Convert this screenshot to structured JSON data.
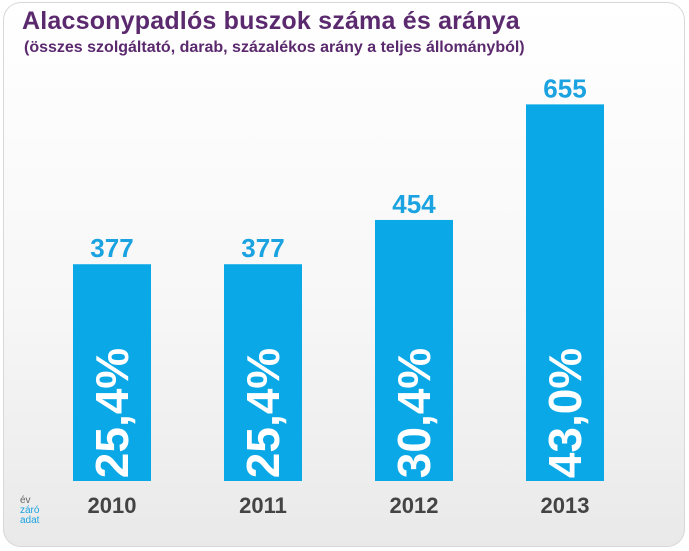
{
  "chart_data": {
    "type": "bar",
    "title": "Alacsonypadlós buszok száma és aránya",
    "subtitle": "(összes szolgáltató, darab, százalékos arány a teljes állományból)",
    "categories": [
      "2010",
      "2011",
      "2012",
      "2013"
    ],
    "values": [
      377,
      377,
      454,
      655
    ],
    "inner_labels": [
      "25,4%",
      "25,4%",
      "30,4%",
      "43,0%"
    ],
    "value_labels": [
      "377",
      "377",
      "454",
      "655"
    ],
    "bar_color": "#0aa8e6",
    "value_label_color": "#1aa3e0",
    "category_label_color": "#444444",
    "grid": false,
    "legend": "none"
  },
  "footnote": {
    "line1": "év",
    "line2": "záró",
    "line3": "adat"
  }
}
